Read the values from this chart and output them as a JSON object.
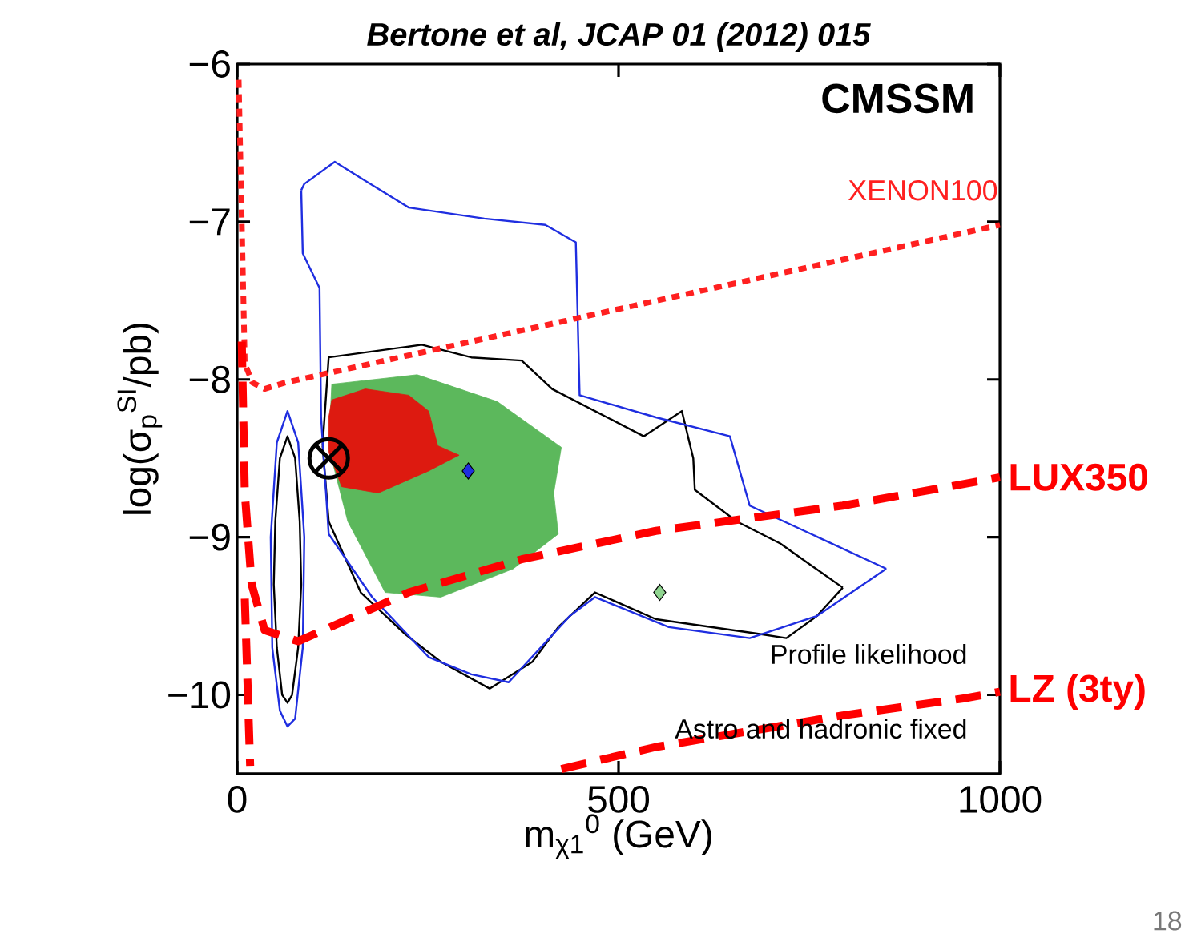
{
  "chart_data": {
    "type": "line",
    "title": "Bertone et al, JCAP 01 (2012) 015",
    "xlabel": "m$_{χ1}$$^{0}$ (GeV)",
    "ylabel": "log(σ$_{p}$$^{SI}$/pb)",
    "xlim": [
      0,
      1000
    ],
    "ylim": [
      -10.5,
      -6
    ],
    "xticks": [
      0,
      500,
      1000
    ],
    "yticks": [
      {
        "value": -10,
        "label": "−10"
      },
      {
        "value": -9,
        "label": "−9"
      },
      {
        "value": -8,
        "label": "−8"
      },
      {
        "value": -7,
        "label": "−7"
      },
      {
        "value": -6,
        "label": "−6"
      }
    ],
    "annotations": [
      "CMSSM",
      "Profile likelihood",
      "Astro and hadronic fixed",
      "18"
    ],
    "series": [
      {
        "type": "area",
        "color": "#5cb85c",
        "x": [
          124,
          236,
          341,
          425,
          415,
          421,
          362,
          267,
          194,
          145,
          120
        ],
        "values": [
          -8.03,
          -7.97,
          -8.14,
          -8.43,
          -8.72,
          -8.98,
          -9.2,
          -9.38,
          -9.35,
          -8.9,
          -8.43
        ]
      },
      {
        "type": "area",
        "color": "#dd1a10",
        "x": [
          124,
          168,
          225,
          251,
          263,
          291,
          267,
          251,
          185,
          137,
          120,
          120
        ],
        "values": [
          -8.13,
          -8.06,
          -8.1,
          -8.2,
          -8.42,
          -8.48,
          -8.54,
          -8.58,
          -8.72,
          -8.68,
          -8.46,
          -8.24
        ]
      },
      {
        "color": "#000000",
        "line_style": "solid",
        "x": [
          112,
          120,
          242,
          307,
          373,
          413,
          469,
          533,
          583,
          598,
          600,
          655,
          712,
          794
        ],
        "values": [
          -8.42,
          -7.86,
          -7.78,
          -7.86,
          -7.88,
          -8.06,
          -8.2,
          -8.36,
          -8.2,
          -8.5,
          -8.7,
          -8.9,
          -9.04,
          -9.32
        ]
      },
      {
        "color": "#000000",
        "line_style": "solid",
        "x": [
          112,
          120,
          162,
          219,
          267,
          331,
          387,
          421,
          469,
          549,
          680,
          720,
          760,
          794
        ],
        "values": [
          -8.42,
          -8.9,
          -9.35,
          -9.61,
          -9.79,
          -9.96,
          -9.79,
          -9.57,
          -9.35,
          -9.52,
          -9.61,
          -9.64,
          -9.5,
          -9.32
        ]
      },
      {
        "color": "#1f2ee0",
        "line_style": "solid",
        "x": [
          84,
          88,
          128,
          168,
          225,
          324,
          404,
          444,
          449,
          549,
          646,
          672,
          851
        ],
        "values": [
          -6.8,
          -6.76,
          -6.62,
          -6.74,
          -6.91,
          -6.98,
          -7.02,
          -7.13,
          -8.1,
          -8.24,
          -8.36,
          -8.8,
          -9.2
        ]
      },
      {
        "color": "#1f2ee0",
        "line_style": "solid",
        "x": [
          84,
          86,
          108,
          110,
          120,
          177,
          251,
          307,
          356,
          436,
          469,
          566,
          672,
          760,
          851
        ],
        "values": [
          -6.8,
          -7.2,
          -7.42,
          -8.24,
          -8.98,
          -9.38,
          -9.76,
          -9.87,
          -9.92,
          -9.5,
          -9.38,
          -9.57,
          -9.64,
          -9.5,
          -9.2
        ]
      },
      {
        "color": "#1f2ee0",
        "line_style": "solid",
        "x": [
          44,
          52,
          66,
          80,
          88,
          null,
          44,
          46,
          56,
          66,
          76,
          86,
          88
        ],
        "values": [
          -9.0,
          -8.4,
          -8.2,
          -8.4,
          -9.0,
          null,
          -9.0,
          -9.7,
          -10.1,
          -10.2,
          -10.15,
          -9.7,
          -9.0
        ]
      },
      {
        "color": "#000000",
        "line_style": "solid",
        "x": [
          48,
          50,
          56,
          66,
          76,
          82,
          84,
          null,
          48,
          52,
          59,
          66,
          72,
          80,
          84
        ],
        "values": [
          -9.3,
          -8.9,
          -8.5,
          -8.36,
          -8.5,
          -8.9,
          -9.3,
          null,
          -9.3,
          -9.7,
          -10.0,
          -10.05,
          -10.0,
          -9.7,
          -9.3
        ]
      },
      {
        "type": "scatter",
        "color": "#1f2ee0",
        "marker": "diamond",
        "x": [
          303
        ],
        "values": [
          -8.58
        ]
      },
      {
        "type": "scatter",
        "color": "#8fd48f",
        "marker": "diamond",
        "x": [
          554
        ],
        "values": [
          -9.35
        ]
      },
      {
        "type": "scatter",
        "color": "#000000",
        "marker": "cross",
        "x": [
          120
        ],
        "values": [
          -8.5
        ]
      },
      {
        "name": "XENON100",
        "color": "#ff2020",
        "line_style": "dotted",
        "x": [
          2,
          6,
          10,
          20,
          36,
          63,
          1000
        ],
        "values": [
          -6.1,
          -7.0,
          -7.9,
          -8.02,
          -8.06,
          -8.02,
          -7.02
        ]
      },
      {
        "name": "LUX350",
        "color": "#ff0000",
        "line_style": "dashed",
        "x": [
          6,
          10,
          19,
          36,
          80,
          225,
          373,
          549,
          794,
          956,
          1000
        ],
        "values": [
          -7.76,
          -8.72,
          -9.3,
          -9.59,
          -9.66,
          -9.35,
          -9.14,
          -8.96,
          -8.8,
          -8.66,
          -8.62
        ]
      },
      {
        "name": "LZ (3ty)",
        "color": "#ff0000",
        "line_style": "dashed",
        "x": [
          10,
          17,
          null,
          425,
          549,
          794,
          956,
          1000
        ],
        "values": [
          -9.39,
          -10.45,
          null,
          -10.47,
          -10.33,
          -10.13,
          -10.02,
          -9.98
        ]
      }
    ]
  }
}
